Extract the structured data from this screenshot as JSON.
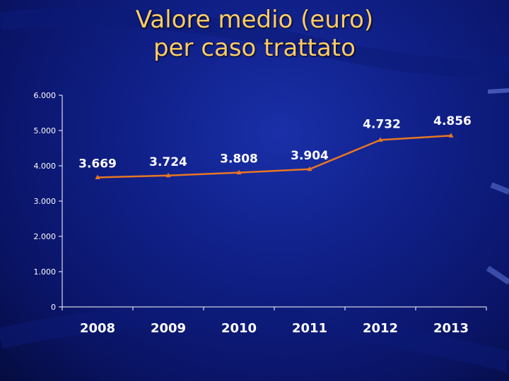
{
  "title": {
    "line1": "Valore medio (euro)",
    "line2": "per caso trattato"
  },
  "chart_data": {
    "type": "line",
    "categories": [
      "2008",
      "2009",
      "2010",
      "2011",
      "2012",
      "2013"
    ],
    "series": [
      {
        "values": [
          3669,
          3724,
          3808,
          3904,
          4732,
          4856
        ],
        "labels": [
          "3.669",
          "3.724",
          "3.808",
          "3.904",
          "4.732",
          "4.856"
        ]
      }
    ],
    "yticks": [
      0,
      1000,
      2000,
      3000,
      4000,
      5000,
      6000
    ],
    "ytick_labels": [
      "0",
      "1.000",
      "2.000",
      "3.000",
      "4.000",
      "5.000",
      "6.000"
    ],
    "ylim": [
      0,
      6000
    ],
    "grid": false,
    "legend": "none",
    "line_color": "#e87722",
    "axis_color": "#ffffff"
  }
}
